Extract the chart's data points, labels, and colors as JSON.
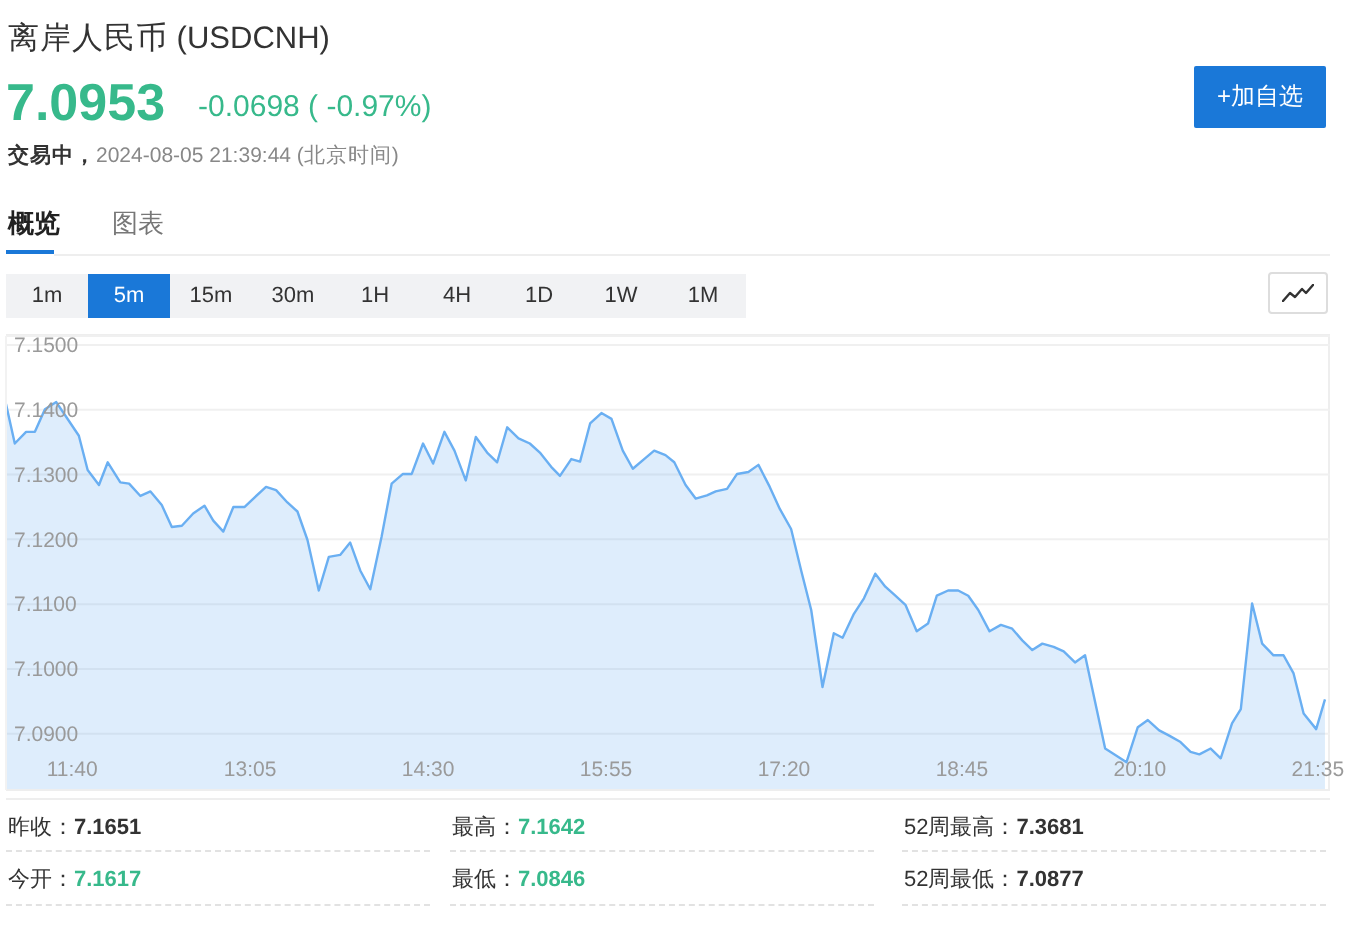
{
  "chart_data": {
    "type": "area",
    "title": "离岸人民币 (USDCNH)",
    "subtitle": "交易中，2024-08-05 21:39:44 (北京时间)",
    "annotations": [
      "7.0953",
      "-0.0698 ( -0.97%)",
      "+加自选",
      "概览",
      "图表",
      "1m",
      "5m",
      "15m",
      "30m",
      "1H",
      "4H",
      "1D",
      "1W",
      "1M",
      "昨收：7.1651",
      "最高：7.1642",
      "52周最高：7.3681",
      "今开：7.1617",
      "最低：7.0846",
      "52周最低：7.0877"
    ],
    "x": [
      11.14,
      11.21,
      11.3,
      11.37,
      11.45,
      11.54,
      11.62,
      11.72,
      11.79,
      11.88,
      11.95,
      12.05,
      12.12,
      12.21,
      12.29,
      12.38,
      12.46,
      12.54,
      12.63,
      12.72,
      12.79,
      12.87,
      12.95,
      13.04,
      13.12,
      13.21,
      13.29,
      13.38,
      13.46,
      13.54,
      13.63,
      13.71,
      13.8,
      13.88,
      13.96,
      14.04,
      14.13,
      14.21,
      14.3,
      14.37,
      14.46,
      14.54,
      14.63,
      14.71,
      14.8,
      14.88,
      14.97,
      15.05,
      15.13,
      15.22,
      15.31,
      15.39,
      15.48,
      15.55,
      15.64,
      15.71,
      15.79,
      15.88,
      15.96,
      16.05,
      16.13,
      16.22,
      16.3,
      16.39,
      16.46,
      16.55,
      16.63,
      16.72,
      16.79,
      16.88,
      16.96,
      17.05,
      17.13,
      17.22,
      17.3,
      17.39,
      17.47,
      17.55,
      17.64,
      17.73,
      17.8,
      17.89,
      17.97,
      18.06,
      18.14,
      18.22,
      18.3,
      18.39,
      18.48,
      18.55,
      18.64,
      18.72,
      18.8,
      18.88,
      18.97,
      19.06,
      19.15,
      19.23,
      19.31,
      19.39,
      19.48,
      19.56,
      19.65,
      19.73,
      19.89,
      19.98,
      20.06,
      20.15,
      20.23,
      20.32,
      20.4,
      20.49,
      20.57,
      20.64,
      20.73,
      20.81,
      20.9,
      20.97,
      21.06,
      21.14,
      21.23,
      21.31,
      21.39,
      21.47,
      21.57,
      21.64
    ],
    "values": [
      7.1409,
      7.1348,
      7.1366,
      7.1366,
      7.1401,
      7.1412,
      7.1389,
      7.136,
      7.1307,
      7.1284,
      7.1319,
      7.1288,
      7.1286,
      7.1267,
      7.1274,
      7.1253,
      7.1219,
      7.1221,
      7.124,
      7.1252,
      7.1229,
      7.1212,
      7.125,
      7.125,
      7.1265,
      7.1281,
      7.1276,
      7.1257,
      7.1243,
      7.1199,
      7.1121,
      7.1173,
      7.1176,
      7.1195,
      7.1152,
      7.1123,
      7.1204,
      7.1286,
      7.1301,
      7.1301,
      7.1348,
      7.1317,
      7.1366,
      7.1337,
      7.1291,
      7.1358,
      7.1334,
      7.1319,
      7.1373,
      7.1356,
      7.1348,
      7.1334,
      7.1312,
      7.1298,
      7.1324,
      7.132,
      7.1379,
      7.1395,
      7.1386,
      7.1337,
      7.1309,
      7.1324,
      7.1337,
      7.133,
      7.1319,
      7.1284,
      7.1263,
      7.1268,
      7.1274,
      7.1278,
      7.1301,
      7.1304,
      7.1315,
      7.1281,
      7.1247,
      7.1216,
      7.1152,
      7.1091,
      7.0972,
      7.1055,
      7.1048,
      7.1085,
      7.1109,
      7.1147,
      7.1127,
      7.1113,
      7.1099,
      7.1058,
      7.107,
      7.1113,
      7.1121,
      7.1121,
      7.1113,
      7.1091,
      7.1058,
      7.1068,
      7.1062,
      7.1044,
      7.1029,
      7.1039,
      7.1034,
      7.1027,
      7.101,
      7.1021,
      7.0877,
      7.0866,
      7.0856,
      7.091,
      7.0921,
      7.0905,
      7.0897,
      7.0887,
      7.0872,
      7.0868,
      7.0877,
      7.0862,
      7.0916,
      7.0938,
      7.1101,
      7.1039,
      7.1021,
      7.1021,
      7.0993,
      7.0931,
      7.0907,
      7.0953
    ],
    "color": "#6aaff2",
    "xlim": [
      11.14,
      21.68
    ],
    "xticks": [
      {
        "value": 11.6667,
        "label": "11:40"
      },
      {
        "value": 13.0833,
        "label": "13:05"
      },
      {
        "value": 14.5,
        "label": "14:30"
      },
      {
        "value": 15.9167,
        "label": "15:55"
      },
      {
        "value": 17.3333,
        "label": "17:20"
      },
      {
        "value": 18.75,
        "label": "18:45"
      },
      {
        "value": 20.1667,
        "label": "20:10"
      },
      {
        "value": 21.5833,
        "label": "21:35"
      }
    ],
    "ylim": [
      7.0813,
      7.1514
    ],
    "yticks": [
      {
        "value": 7.09,
        "label": "7.0900"
      },
      {
        "value": 7.1,
        "label": "7.1000"
      },
      {
        "value": 7.11,
        "label": "7.1100"
      },
      {
        "value": 7.12,
        "label": "7.1200"
      },
      {
        "value": 7.13,
        "label": "7.1300"
      },
      {
        "value": 7.14,
        "label": "7.1400"
      },
      {
        "value": 7.15,
        "label": "7.1500"
      }
    ],
    "grid": "y"
  }
}
